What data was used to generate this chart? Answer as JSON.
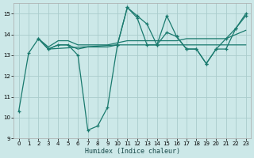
{
  "xlabel": "Humidex (Indice chaleur)",
  "bg_color": "#cce8e8",
  "grid_color": "#aacccc",
  "line_color": "#1a7a6e",
  "xlim": [
    -0.5,
    23.5
  ],
  "ylim": [
    9,
    15.5
  ],
  "yticks": [
    9,
    10,
    11,
    12,
    13,
    14,
    15
  ],
  "xticks": [
    0,
    1,
    2,
    3,
    4,
    5,
    6,
    7,
    8,
    9,
    10,
    11,
    12,
    13,
    14,
    15,
    16,
    17,
    18,
    19,
    20,
    21,
    22,
    23
  ],
  "series": [
    {
      "x": [
        0,
        1,
        2,
        3,
        4,
        5,
        6,
        7,
        8,
        9,
        10,
        11,
        12,
        13,
        14,
        15,
        16,
        17,
        18,
        19,
        20,
        21,
        22,
        23
      ],
      "y": [
        10.3,
        13.1,
        13.8,
        13.3,
        13.5,
        13.5,
        13.0,
        9.4,
        9.6,
        10.5,
        13.5,
        15.3,
        14.8,
        13.5,
        13.5,
        14.1,
        13.9,
        13.3,
        13.3,
        12.6,
        13.3,
        13.8,
        14.3,
        14.9
      ],
      "markers": true
    },
    {
      "x": [
        2,
        3,
        4,
        5,
        6,
        7,
        8,
        9,
        10,
        11,
        12,
        13,
        14,
        15,
        16,
        17,
        18,
        19,
        20,
        21,
        22,
        23
      ],
      "y": [
        13.8,
        13.3,
        13.5,
        13.5,
        13.3,
        13.4,
        13.4,
        13.4,
        13.5,
        13.5,
        13.5,
        13.5,
        13.5,
        13.5,
        13.5,
        13.5,
        13.5,
        13.5,
        13.5,
        13.5,
        13.5,
        13.5
      ],
      "markers": false
    },
    {
      "x": [
        2,
        3,
        4,
        5,
        6,
        7,
        8,
        9,
        10,
        11,
        12,
        13,
        14,
        15,
        16,
        17,
        18,
        19,
        20,
        21,
        22,
        23
      ],
      "y": [
        13.8,
        13.4,
        13.7,
        13.7,
        13.5,
        13.5,
        13.5,
        13.5,
        13.6,
        13.7,
        13.7,
        13.7,
        13.7,
        13.7,
        13.7,
        13.8,
        13.8,
        13.8,
        13.8,
        13.8,
        14.0,
        14.2
      ],
      "markers": false
    },
    {
      "x": [
        2,
        3,
        10,
        11,
        12,
        13,
        14,
        15,
        16,
        17,
        18,
        19,
        20,
        21,
        22,
        23
      ],
      "y": [
        13.8,
        13.3,
        13.5,
        15.3,
        14.9,
        14.5,
        13.5,
        14.9,
        13.9,
        13.3,
        13.3,
        12.6,
        13.3,
        13.3,
        14.3,
        15.0
      ],
      "markers": true
    }
  ]
}
